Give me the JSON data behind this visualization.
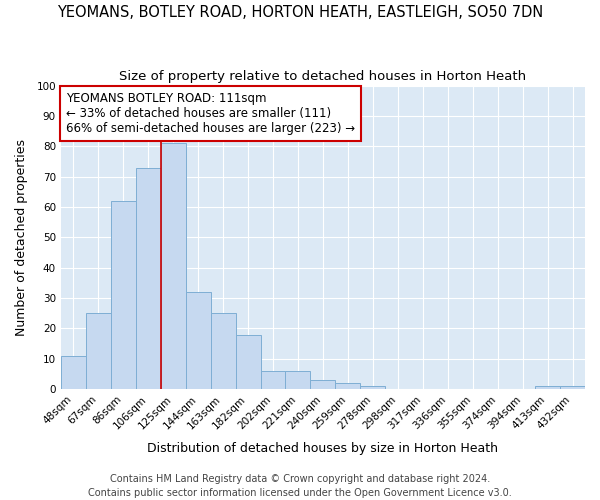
{
  "title": "YEOMANS, BOTLEY ROAD, HORTON HEATH, EASTLEIGH, SO50 7DN",
  "subtitle": "Size of property relative to detached houses in Horton Heath",
  "xlabel": "Distribution of detached houses by size in Horton Heath",
  "ylabel": "Number of detached properties",
  "categories": [
    "48sqm",
    "67sqm",
    "86sqm",
    "106sqm",
    "125sqm",
    "144sqm",
    "163sqm",
    "182sqm",
    "202sqm",
    "221sqm",
    "240sqm",
    "259sqm",
    "278sqm",
    "298sqm",
    "317sqm",
    "336sqm",
    "355sqm",
    "374sqm",
    "394sqm",
    "413sqm",
    "432sqm"
  ],
  "values": [
    11,
    25,
    62,
    73,
    81,
    32,
    25,
    18,
    6,
    6,
    3,
    2,
    1,
    0,
    0,
    0,
    0,
    0,
    0,
    1,
    1
  ],
  "bar_fill_color": "#c6d9f0",
  "bar_edge_color": "#7eaed4",
  "vline_x_index": 3,
  "vline_color": "#cc0000",
  "annotation_text": "YEOMANS BOTLEY ROAD: 111sqm\n← 33% of detached houses are smaller (111)\n66% of semi-detached houses are larger (223) →",
  "annotation_box_color": "#ffffff",
  "annotation_box_edge": "#cc0000",
  "ylim": [
    0,
    100
  ],
  "yticks": [
    0,
    10,
    20,
    30,
    40,
    50,
    60,
    70,
    80,
    90,
    100
  ],
  "plot_bg_color": "#dce9f5",
  "grid_color": "#ffffff",
  "fig_bg_color": "#ffffff",
  "footer": "Contains HM Land Registry data © Crown copyright and database right 2024.\nContains public sector information licensed under the Open Government Licence v3.0.",
  "title_fontsize": 10.5,
  "subtitle_fontsize": 9.5,
  "axis_label_fontsize": 9,
  "tick_fontsize": 7.5,
  "footer_fontsize": 7,
  "annot_fontsize": 8.5
}
